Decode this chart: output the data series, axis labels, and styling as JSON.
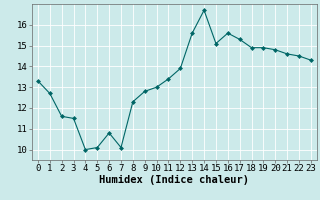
{
  "xlabel": "Humidex (Indice chaleur)",
  "x": [
    0,
    1,
    2,
    3,
    4,
    5,
    6,
    7,
    8,
    9,
    10,
    11,
    12,
    13,
    14,
    15,
    16,
    17,
    18,
    19,
    20,
    21,
    22,
    23
  ],
  "y": [
    13.3,
    12.7,
    11.6,
    11.5,
    10.0,
    10.1,
    10.8,
    10.1,
    12.3,
    12.8,
    13.0,
    13.4,
    13.9,
    15.6,
    16.7,
    15.1,
    15.6,
    15.3,
    14.9,
    14.9,
    14.8,
    14.6,
    14.5,
    14.3
  ],
  "line_color": "#006666",
  "marker": "D",
  "marker_size": 2.0,
  "bg_color": "#cceaea",
  "grid_color": "#ffffff",
  "ylim": [
    9.5,
    17.0
  ],
  "yticks": [
    10,
    11,
    12,
    13,
    14,
    15,
    16
  ],
  "xticks": [
    0,
    1,
    2,
    3,
    4,
    5,
    6,
    7,
    8,
    9,
    10,
    11,
    12,
    13,
    14,
    15,
    16,
    17,
    18,
    19,
    20,
    21,
    22,
    23
  ],
  "tick_fontsize": 6.5,
  "xlabel_fontsize": 7.5,
  "spine_color": "#666666"
}
